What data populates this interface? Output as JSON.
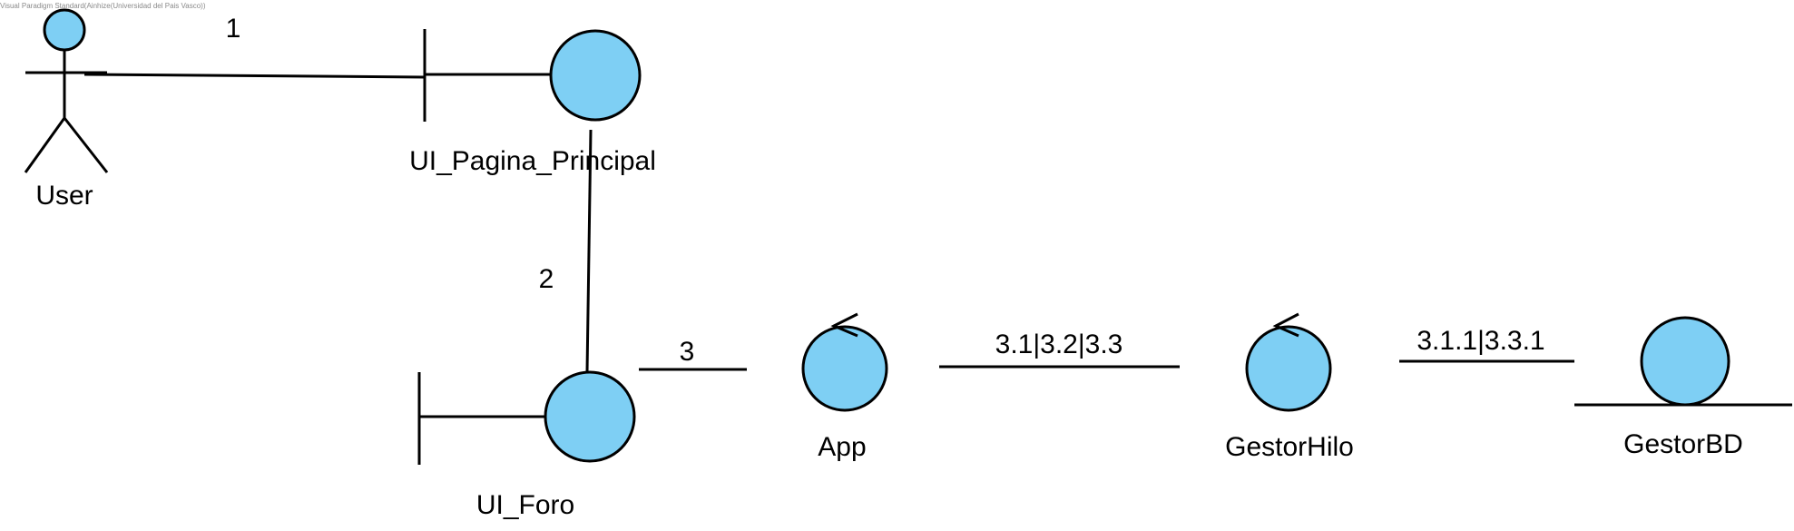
{
  "watermark": "Visual Paradigm Standard(Ainhize(Universidad del Pais Vasco))",
  "colors": {
    "fill": "#7ecff4",
    "stroke": "#000000",
    "text": "#000000",
    "watermark": "#8a8a8a"
  },
  "nodes": {
    "user": {
      "type": "actor",
      "label": "User"
    },
    "ui_pagina_principal": {
      "type": "boundary",
      "label": "UI_Pagina_Principal"
    },
    "ui_foro": {
      "type": "boundary",
      "label": "UI_Foro"
    },
    "app": {
      "type": "control",
      "label": "App"
    },
    "gestor_hilo": {
      "type": "control",
      "label": "GestorHilo"
    },
    "gestor_bd": {
      "type": "entity",
      "label": "GestorBD"
    }
  },
  "links": [
    {
      "from": "user",
      "to": "ui_pagina_principal",
      "label": "1"
    },
    {
      "from": "ui_pagina_principal",
      "to": "ui_foro",
      "label": "2"
    },
    {
      "from": "ui_foro",
      "to": "app",
      "label": "3"
    },
    {
      "from": "app",
      "to": "gestor_hilo",
      "label": "3.1|3.2|3.3"
    },
    {
      "from": "gestor_hilo",
      "to": "gestor_bd",
      "label": "3.1.1|3.3.1"
    }
  ]
}
